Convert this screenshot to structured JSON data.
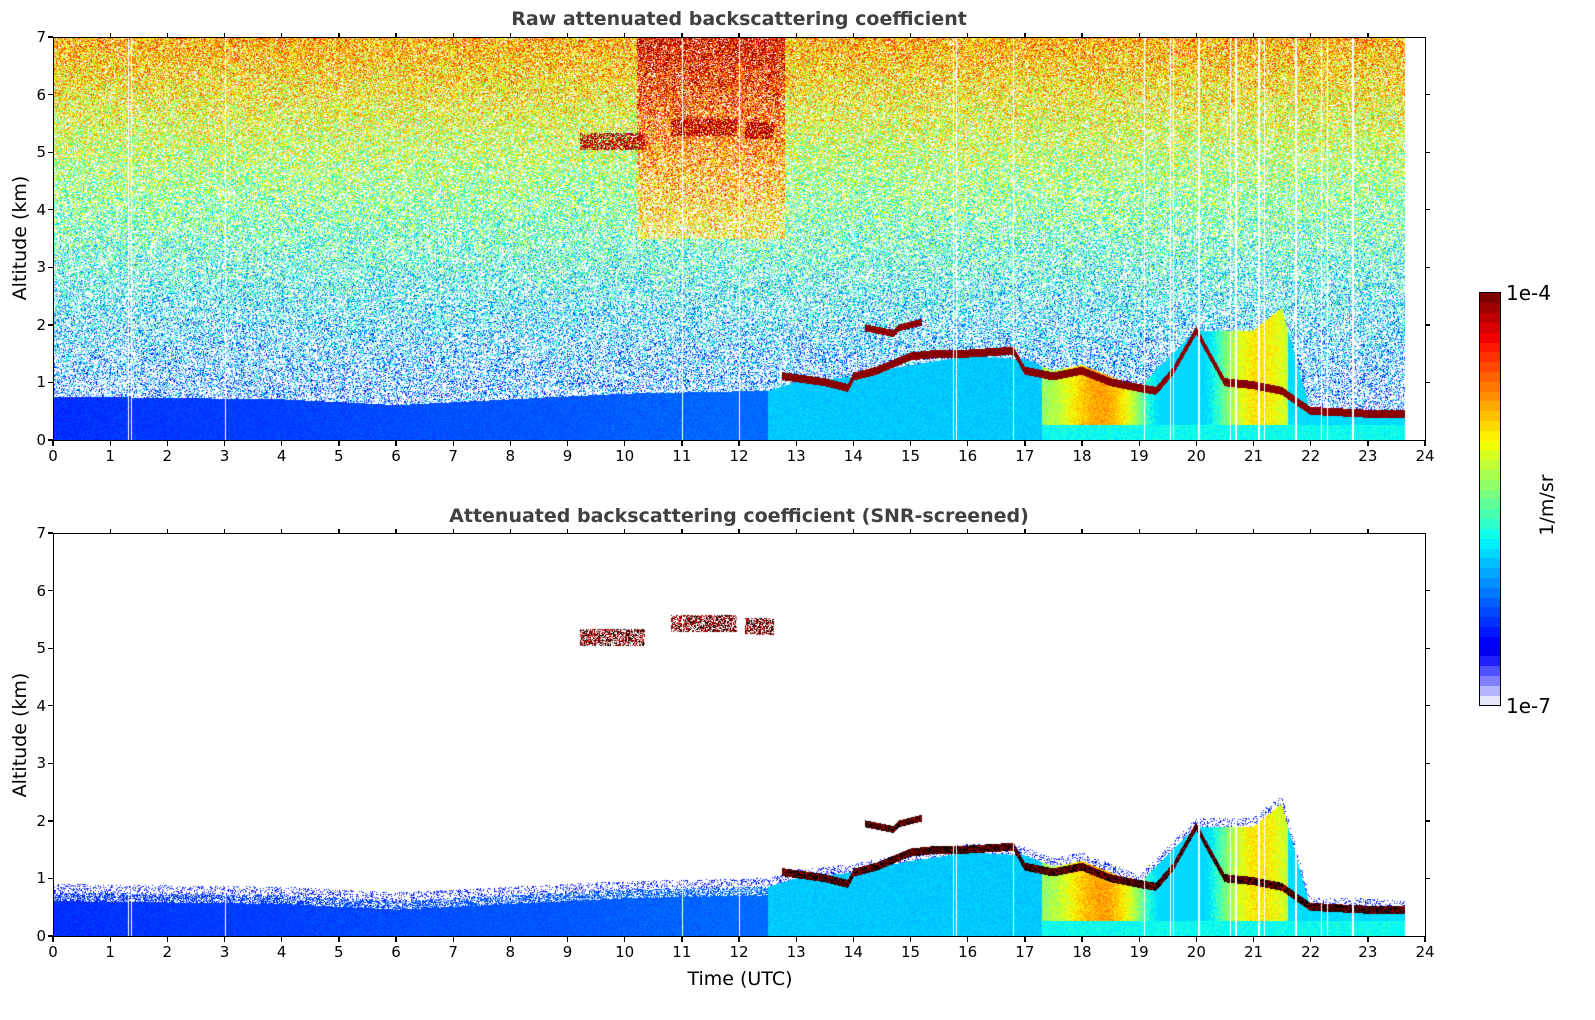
{
  "chart_data": [
    {
      "type": "heatmap",
      "title": "Raw attenuated backscattering coefficient",
      "xlabel": "",
      "ylabel": "Altitude (km)",
      "xlim": [
        0,
        24
      ],
      "ylim": [
        0,
        7
      ],
      "xticks": [
        "0",
        "1",
        "2",
        "3",
        "4",
        "5",
        "6",
        "7",
        "8",
        "9",
        "10",
        "11",
        "12",
        "13",
        "14",
        "15",
        "16",
        "17",
        "18",
        "19",
        "20",
        "21",
        "22",
        "23",
        "24"
      ],
      "yticks": [
        "0",
        "1",
        "2",
        "3",
        "4",
        "5",
        "6",
        "7"
      ],
      "data_end_time": 23.65,
      "missing_time_columns": [
        1.3,
        1.35,
        3.0,
        11.0,
        12.0,
        15.75,
        15.8,
        16.8,
        19.1,
        19.55,
        19.6,
        20.05,
        20.6,
        20.7,
        21.1,
        21.2,
        21.75,
        22.2,
        22.3,
        22.75
      ],
      "features": [
        {
          "name": "boundary-layer",
          "time": [
            0,
            4,
            6,
            10,
            12.5,
            13,
            14,
            15,
            16,
            17,
            17.5,
            18,
            19,
            20,
            21,
            21.5,
            22,
            23,
            23.65
          ],
          "top_km": [
            0.75,
            0.7,
            0.6,
            0.8,
            0.85,
            1.0,
            1.1,
            1.3,
            1.45,
            1.4,
            1.2,
            1.3,
            0.9,
            1.9,
            1.9,
            2.3,
            0.5,
            0.5,
            0.45
          ]
        },
        {
          "name": "cloud-layer",
          "time": [
            12.8,
            13.5,
            13.9,
            14.0,
            14.4,
            15.0,
            15.5,
            16.0,
            16.8,
            17.0,
            17.5,
            18.0,
            18.5,
            19.0,
            19.3,
            19.6,
            20.0,
            20.5,
            21.0,
            21.5,
            22.0,
            23.0,
            23.65
          ],
          "alt_km": [
            1.1,
            1.0,
            0.9,
            1.1,
            1.2,
            1.45,
            1.5,
            1.5,
            1.55,
            1.2,
            1.1,
            1.2,
            1.0,
            0.9,
            0.85,
            1.2,
            1.9,
            1.0,
            0.95,
            0.85,
            0.5,
            0.45,
            0.45
          ]
        },
        {
          "name": "elevated-layer",
          "time": [
            14.2,
            14.7,
            14.8,
            15.2
          ],
          "alt_km": [
            1.95,
            1.85,
            1.95,
            2.05
          ]
        },
        {
          "name": "mid-level-cloud",
          "time": [
            9.2,
            10.35,
            10.8,
            11.95,
            12.1,
            12.6
          ],
          "alt_km": [
            5.2,
            5.35,
            5.45,
            5.45,
            5.4,
            5.2
          ]
        }
      ]
    },
    {
      "type": "heatmap",
      "title": "Attenuated backscattering coefficient (SNR-screened)",
      "xlabel": "Time (UTC)",
      "ylabel": "Altitude (km)",
      "xlim": [
        0,
        24
      ],
      "ylim": [
        0,
        7
      ],
      "xticks": [
        "0",
        "1",
        "2",
        "3",
        "4",
        "5",
        "6",
        "7",
        "8",
        "9",
        "10",
        "11",
        "12",
        "13",
        "14",
        "15",
        "16",
        "17",
        "18",
        "19",
        "20",
        "21",
        "22",
        "23",
        "24"
      ],
      "yticks": [
        "0",
        "1",
        "2",
        "3",
        "4",
        "5",
        "6",
        "7"
      ],
      "screened": true
    }
  ],
  "colorbar": {
    "max_label": "1e-4",
    "min_label": "1e-7",
    "unit": "1/m/sr",
    "colormap": "jet",
    "scale": "log",
    "colors": [
      "#e6e6fa",
      "#b4b4ff",
      "#8080ff",
      "#5050ff",
      "#2020ff",
      "#0000f0",
      "#0000ff",
      "#0018ff",
      "#0030ff",
      "#0048ff",
      "#0060ff",
      "#0078ff",
      "#0090ff",
      "#00a8ff",
      "#00c0ff",
      "#00d8ff",
      "#00f0ff",
      "#10ffe8",
      "#30ffc8",
      "#48ffb0",
      "#60ff98",
      "#78ff80",
      "#90ff68",
      "#a8ff50",
      "#c0ff38",
      "#d8ff20",
      "#f0ff08",
      "#fff000",
      "#ffd800",
      "#ffc000",
      "#ffa800",
      "#ff9000",
      "#ff7800",
      "#ff6000",
      "#ff4800",
      "#ff3000",
      "#ff1800",
      "#f00000",
      "#d80000",
      "#c00000",
      "#a00000",
      "#800000"
    ]
  }
}
